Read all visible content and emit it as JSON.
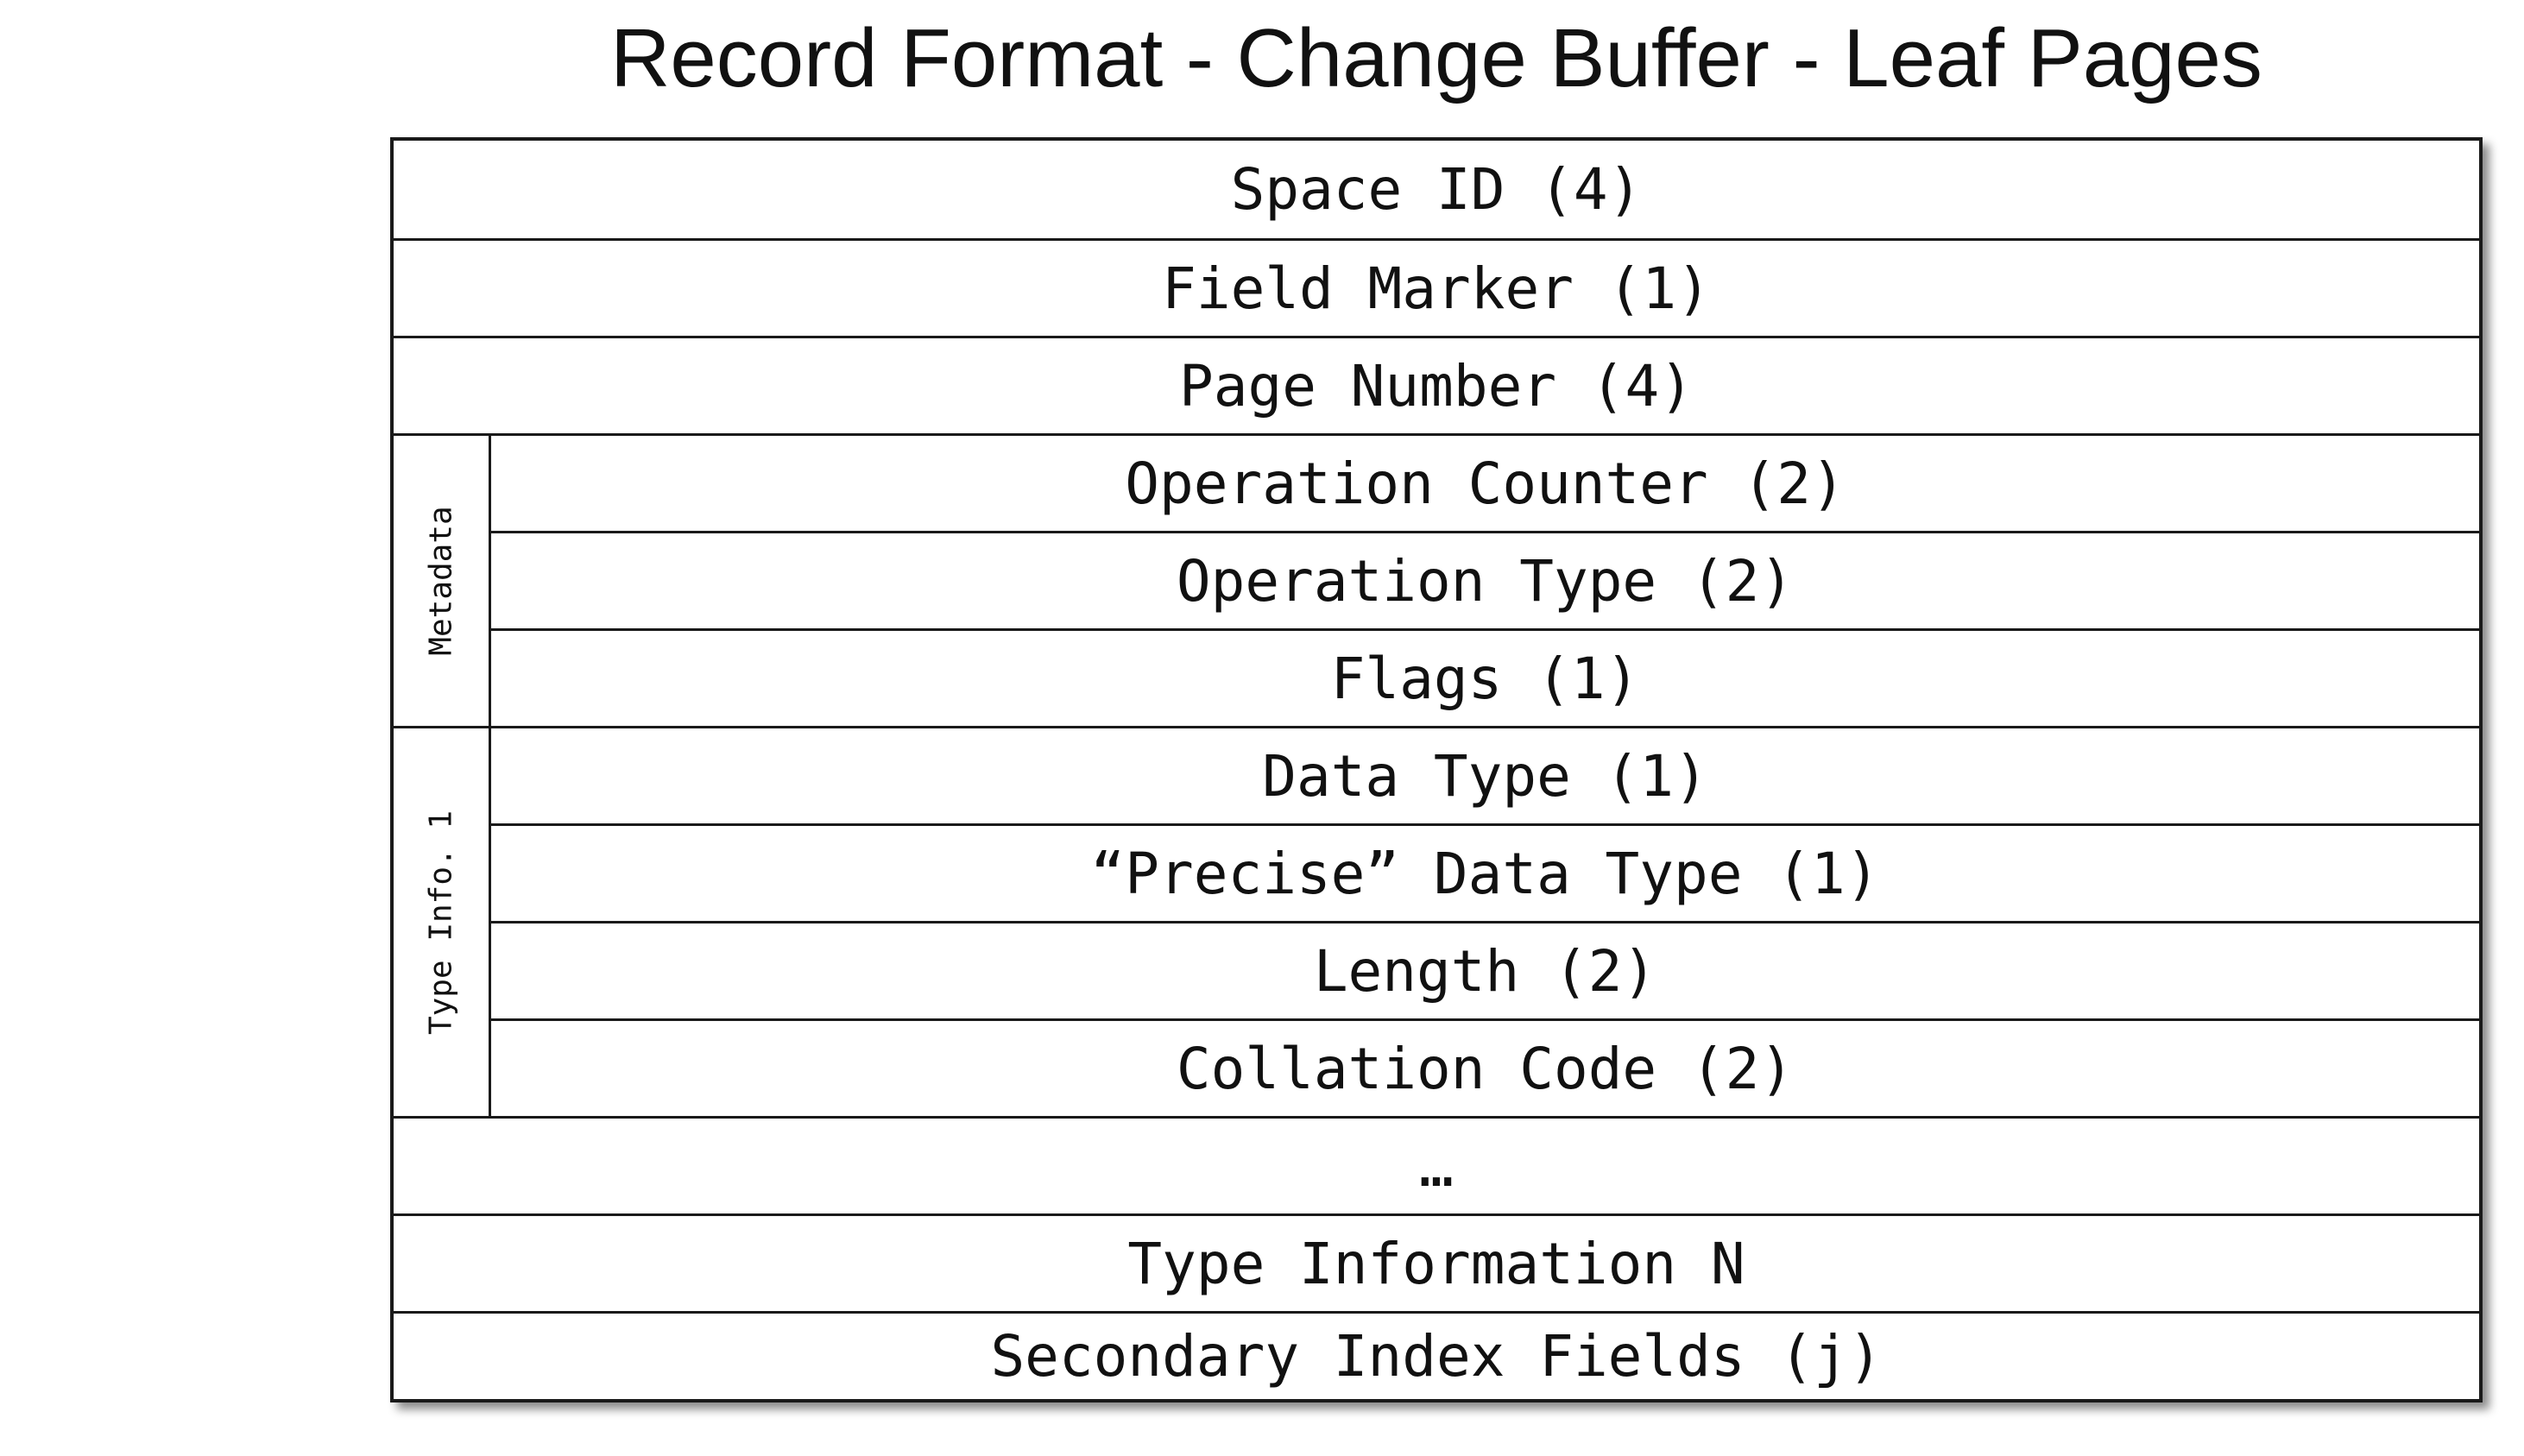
{
  "title": "Record Format - Change Buffer - Leaf Pages",
  "rows": {
    "space_id": "Space ID (4)",
    "field_marker": "Field Marker (1)",
    "page_number": "Page Number (4)",
    "operation_counter": "Operation Counter (2)",
    "operation_type": "Operation Type (2)",
    "flags": "Flags (1)",
    "data_type": "Data Type (1)",
    "precise_data_type": "“Precise” Data Type (1)",
    "length": "Length (2)",
    "collation_code": "Collation Code (2)",
    "ellipsis": "…",
    "type_information_n": "Type Information N",
    "secondary_index_fields": "Secondary Index Fields (j)"
  },
  "groups": {
    "metadata": "Metadata",
    "type_info_1": "Type Info. 1"
  }
}
